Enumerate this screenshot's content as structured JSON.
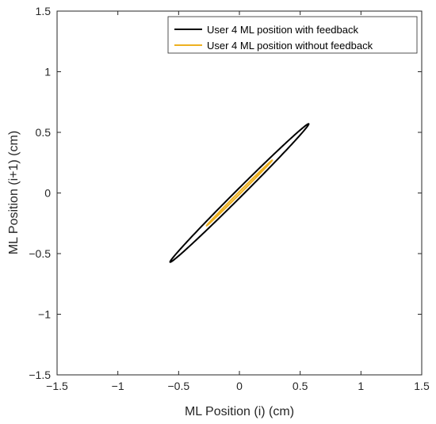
{
  "chart_data": {
    "type": "line",
    "title": "",
    "xlabel": "ML Position (i) (cm)",
    "ylabel": "ML Position (i+1) (cm)",
    "xlim": [
      -1.5,
      1.5
    ],
    "ylim": [
      -1.5,
      1.5
    ],
    "xticks": [
      -1.5,
      -1,
      -0.5,
      0,
      0.5,
      1,
      1.5
    ],
    "yticks": [
      -1.5,
      -1,
      -0.5,
      0,
      0.5,
      1,
      1.5
    ],
    "xtick_labels": [
      "−1.5",
      "−1",
      "−0.5",
      "0",
      "0.5",
      "1",
      "1.5"
    ],
    "ytick_labels": [
      "−1.5",
      "−1",
      "−0.5",
      "0",
      "0.5",
      "1",
      "1.5"
    ],
    "grid": false,
    "legend_position": "top-right",
    "series": [
      {
        "name": "User 4 ML position with feedback",
        "color": "#000000",
        "shape": "ellipse",
        "center": [
          0,
          0
        ],
        "major_endpoints": [
          [
            -0.57,
            -0.57
          ],
          [
            0.57,
            0.57
          ]
        ],
        "minor_half_width": 0.03
      },
      {
        "name": "User 4 ML position without feedback",
        "color": "#EDB120",
        "shape": "ellipse",
        "center": [
          0,
          0
        ],
        "major_endpoints": [
          [
            -0.27,
            -0.27
          ],
          [
            0.27,
            0.27
          ]
        ],
        "minor_half_width": 0.008
      }
    ]
  }
}
